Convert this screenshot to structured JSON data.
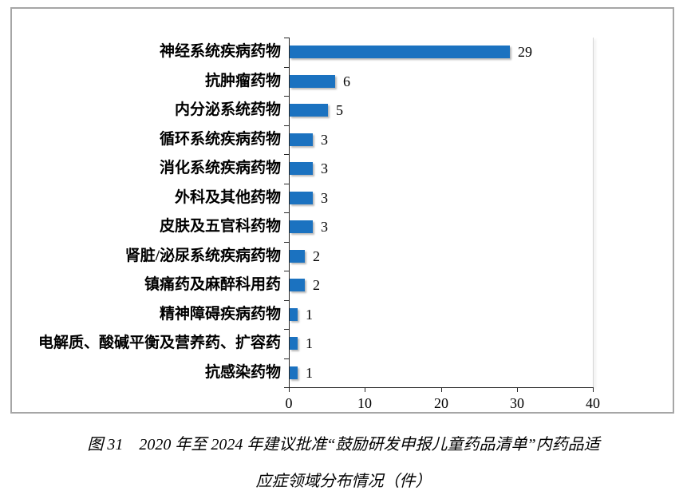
{
  "chart_data": {
    "type": "bar",
    "orientation": "horizontal",
    "title": "",
    "xlabel": "",
    "ylabel": "",
    "categories": [
      "神经系统疾病药物",
      "抗肿瘤药物",
      "内分泌系统药物",
      "循环系统疾病药物",
      "消化系统疾病药物",
      "外科及其他药物",
      "皮肤及五官科药物",
      "肾脏/泌尿系统疾病药物",
      "镇痛药及麻醉科用药",
      "精神障碍疾病药物",
      "电解质、酸碱平衡及营养药、扩容药",
      "抗感染药物"
    ],
    "values": [
      29,
      6,
      5,
      3,
      3,
      3,
      3,
      2,
      2,
      1,
      1,
      1
    ],
    "value_labels": [
      "29",
      "6",
      "5",
      "3",
      "3",
      "3",
      "3",
      "2",
      "2",
      "1",
      "1",
      "1"
    ],
    "xlim": [
      0,
      40
    ],
    "x_ticks": [
      0,
      10,
      20,
      30,
      40
    ],
    "grid": false,
    "legend": null,
    "bar_color": "#1B72C0"
  },
  "caption": {
    "line1": "图 31　2020 年至 2024 年建议批准“鼓励研发申报儿童药品清单”内药品适",
    "line2": "应症领域分布情况（件）"
  },
  "colors": {
    "bar": "#1B72C0",
    "frame_border": "#A6A6A6",
    "axis": "#262626",
    "plot_right_border": "#D6D6D6",
    "background": "#FFFFFF",
    "text": "#000000"
  }
}
